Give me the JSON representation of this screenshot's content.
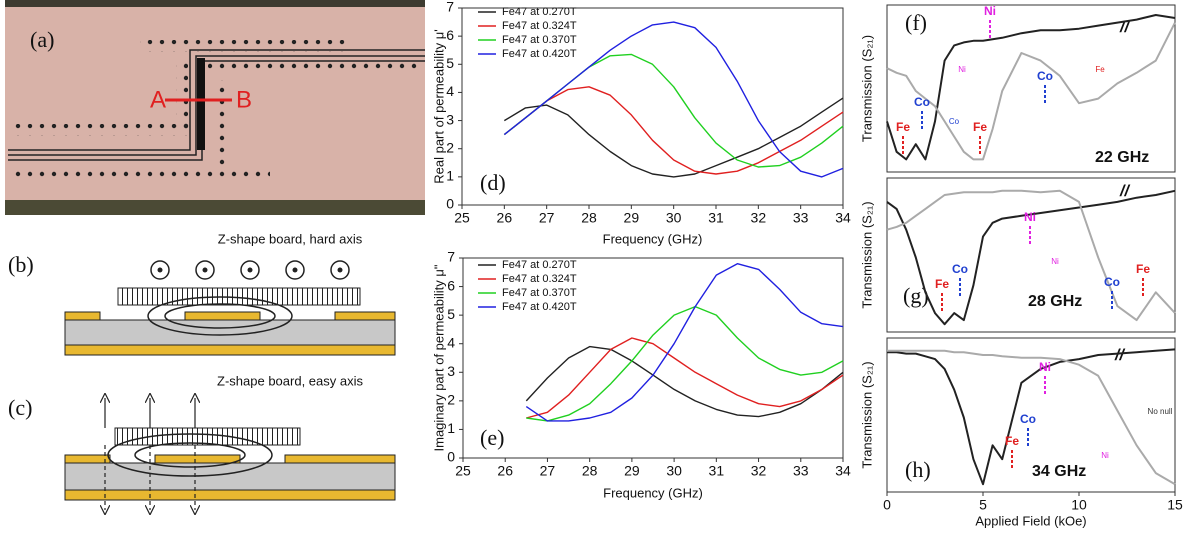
{
  "panel_a": {
    "label": "(a)",
    "point_a": "A",
    "point_b": "B"
  },
  "panel_b": {
    "label": "(b)",
    "title": "Z-shape board, hard axis"
  },
  "panel_c": {
    "label": "(c)",
    "title": "Z-shape board, easy axis"
  },
  "chart_data": [
    {
      "type": "line",
      "panel_label": "(d)",
      "y_label": "Real part of permeability μ'",
      "x_label": "Frequency (GHz)",
      "xlim": [
        25,
        34
      ],
      "xticks": [
        25,
        26,
        27,
        28,
        29,
        30,
        31,
        32,
        33,
        34
      ],
      "ylim": [
        0,
        7
      ],
      "yticks": [
        0,
        1,
        2,
        3,
        4,
        5,
        6,
        7
      ],
      "x": [
        26,
        26.5,
        27,
        27.5,
        28,
        28.5,
        29,
        29.5,
        30,
        30.5,
        31,
        31.5,
        32,
        32.5,
        33,
        33.5,
        34
      ],
      "series": [
        {
          "name": "Fe47 at 0.270T",
          "color": "#222222",
          "values": [
            3.0,
            3.45,
            3.55,
            3.2,
            2.5,
            1.9,
            1.4,
            1.1,
            1.0,
            1.1,
            1.4,
            1.7,
            2.0,
            2.4,
            2.8,
            3.3,
            3.8
          ]
        },
        {
          "name": "Fe47 at 0.324T",
          "color": "#e02020",
          "values": [
            2.5,
            3.1,
            3.7,
            4.1,
            4.2,
            3.9,
            3.2,
            2.3,
            1.6,
            1.2,
            1.1,
            1.2,
            1.5,
            1.9,
            2.3,
            2.8,
            3.3
          ]
        },
        {
          "name": "Fe47 at 0.370T",
          "color": "#20d020",
          "values": [
            2.5,
            3.1,
            3.7,
            4.3,
            4.9,
            5.3,
            5.35,
            5.0,
            4.2,
            3.1,
            2.2,
            1.6,
            1.35,
            1.4,
            1.7,
            2.2,
            2.8
          ]
        },
        {
          "name": "Fe47 at 0.420T",
          "color": "#2020e0",
          "values": [
            2.5,
            3.1,
            3.7,
            4.3,
            4.9,
            5.5,
            6.0,
            6.4,
            6.5,
            6.3,
            5.6,
            4.4,
            3.0,
            1.9,
            1.2,
            1.0,
            1.3
          ]
        }
      ]
    },
    {
      "type": "line",
      "panel_label": "(e)",
      "y_label": "Imaginary part of permeability μ\"",
      "x_label": "Frequency (GHz)",
      "xlim": [
        25,
        34
      ],
      "xticks": [
        25,
        26,
        27,
        28,
        29,
        30,
        31,
        32,
        33,
        34
      ],
      "ylim": [
        0,
        7
      ],
      "yticks": [
        0,
        1,
        2,
        3,
        4,
        5,
        6,
        7
      ],
      "x": [
        26.5,
        27,
        27.5,
        28,
        28.5,
        29,
        29.5,
        30,
        30.5,
        31,
        31.5,
        32,
        32.5,
        33,
        33.5,
        34
      ],
      "series": [
        {
          "name": "Fe47 at 0.270T",
          "color": "#222222",
          "values": [
            2.0,
            2.8,
            3.5,
            3.9,
            3.8,
            3.4,
            2.9,
            2.4,
            2.0,
            1.7,
            1.5,
            1.45,
            1.6,
            1.9,
            2.4,
            3.0
          ]
        },
        {
          "name": "Fe47 at 0.324T",
          "color": "#e02020",
          "values": [
            1.4,
            1.6,
            2.2,
            3.0,
            3.8,
            4.2,
            4.0,
            3.5,
            3.0,
            2.6,
            2.2,
            1.9,
            1.8,
            2.0,
            2.4,
            2.9
          ]
        },
        {
          "name": "Fe47 at 0.370T",
          "color": "#20d020",
          "values": [
            1.4,
            1.3,
            1.5,
            1.9,
            2.6,
            3.4,
            4.3,
            5.0,
            5.3,
            5.0,
            4.2,
            3.5,
            3.1,
            2.9,
            3.0,
            3.4
          ]
        },
        {
          "name": "Fe47 at 0.420T",
          "color": "#2020e0",
          "values": [
            1.8,
            1.3,
            1.3,
            1.4,
            1.6,
            2.1,
            2.9,
            4.0,
            5.3,
            6.4,
            6.8,
            6.6,
            5.9,
            5.1,
            4.7,
            4.6
          ]
        }
      ]
    },
    {
      "type": "line",
      "panel_label": "(f)",
      "frequency_label": "22 GHz",
      "break_mark": "//",
      "y_label": "Transmission (S₂₁)",
      "xlim": [
        0,
        15
      ],
      "x": [
        0,
        0.5,
        1,
        1.5,
        2,
        2.5,
        3,
        3.5,
        4,
        4.5,
        5,
        5.5,
        6,
        7,
        8,
        9,
        10,
        11,
        12,
        13,
        14,
        15
      ],
      "element_labels": [
        "Ni",
        "Fe",
        "Co",
        "Fe",
        "Ni",
        "Co",
        "Fe",
        "Co"
      ],
      "series": [
        {
          "color": "#222222",
          "values": [
            0.3,
            0.1,
            0.05,
            0.15,
            0.05,
            0.3,
            0.7,
            0.8,
            0.82,
            0.83,
            0.83,
            0.84,
            0.85,
            0.88,
            0.9,
            0.9,
            0.91,
            0.93,
            0.95,
            0.97,
            1.0,
            0.98
          ]
        },
        {
          "color": "#aaaaaa",
          "values": [
            0.65,
            0.62,
            0.6,
            0.5,
            0.45,
            0.4,
            0.3,
            0.2,
            0.1,
            0.05,
            0.05,
            0.25,
            0.5,
            0.75,
            0.7,
            0.6,
            0.42,
            0.45,
            0.55,
            0.62,
            0.7,
            0.95
          ]
        }
      ]
    },
    {
      "type": "line",
      "panel_label": "(g)",
      "frequency_label": "28 GHz",
      "break_mark": "//",
      "y_label": "Transmission (S₂₁)",
      "xlim": [
        0,
        15
      ],
      "x": [
        0,
        0.5,
        1,
        1.5,
        2,
        2.5,
        3,
        3.5,
        4,
        4.5,
        5,
        5.5,
        6,
        7,
        8,
        9,
        10,
        11,
        12,
        13,
        14,
        15
      ],
      "element_labels": [
        "Ni",
        "Fe",
        "Co",
        "Ni",
        "Co",
        "Fe"
      ],
      "series": [
        {
          "color": "#222222",
          "values": [
            0.9,
            0.85,
            0.7,
            0.5,
            0.25,
            0.1,
            0.02,
            0.1,
            0.05,
            0.3,
            0.65,
            0.75,
            0.78,
            0.8,
            0.82,
            0.84,
            0.86,
            0.88,
            0.9,
            0.93,
            0.95,
            0.98
          ]
        },
        {
          "color": "#aaaaaa",
          "values": [
            0.7,
            0.72,
            0.75,
            0.8,
            0.85,
            0.9,
            0.95,
            0.96,
            0.97,
            0.97,
            0.97,
            0.97,
            0.98,
            0.98,
            0.97,
            0.98,
            0.9,
            0.5,
            0.15,
            0.05,
            0.25,
            0.1
          ]
        }
      ]
    },
    {
      "type": "line",
      "panel_label": "(h)",
      "frequency_label": "34 GHz",
      "break_mark": "//",
      "y_label": "Transmission (S₂₁)",
      "x_label": "Applied Field (kOe)",
      "xlim": [
        0,
        15
      ],
      "xticks": [
        0,
        5,
        10,
        15
      ],
      "x": [
        0,
        0.5,
        1,
        1.5,
        2,
        2.5,
        3,
        3.5,
        4,
        4.5,
        5,
        5.5,
        6,
        7,
        8,
        9,
        10,
        11,
        12,
        13,
        14,
        15
      ],
      "element_labels": [
        "Ni",
        "Fe",
        "Co",
        "Ni",
        "No null"
      ],
      "series": [
        {
          "color": "#222222",
          "values": [
            0.97,
            0.97,
            0.96,
            0.96,
            0.94,
            0.92,
            0.85,
            0.7,
            0.5,
            0.2,
            0.02,
            0.3,
            0.2,
            0.75,
            0.85,
            0.9,
            0.92,
            0.95,
            0.96,
            0.97,
            0.98,
            0.99
          ]
        },
        {
          "color": "#aaaaaa",
          "values": [
            0.98,
            0.98,
            0.98,
            0.98,
            0.98,
            0.98,
            0.98,
            0.97,
            0.97,
            0.96,
            0.95,
            0.95,
            0.94,
            0.93,
            0.93,
            0.92,
            0.88,
            0.8,
            0.55,
            0.3,
            0.1,
            0.02
          ]
        }
      ]
    }
  ]
}
